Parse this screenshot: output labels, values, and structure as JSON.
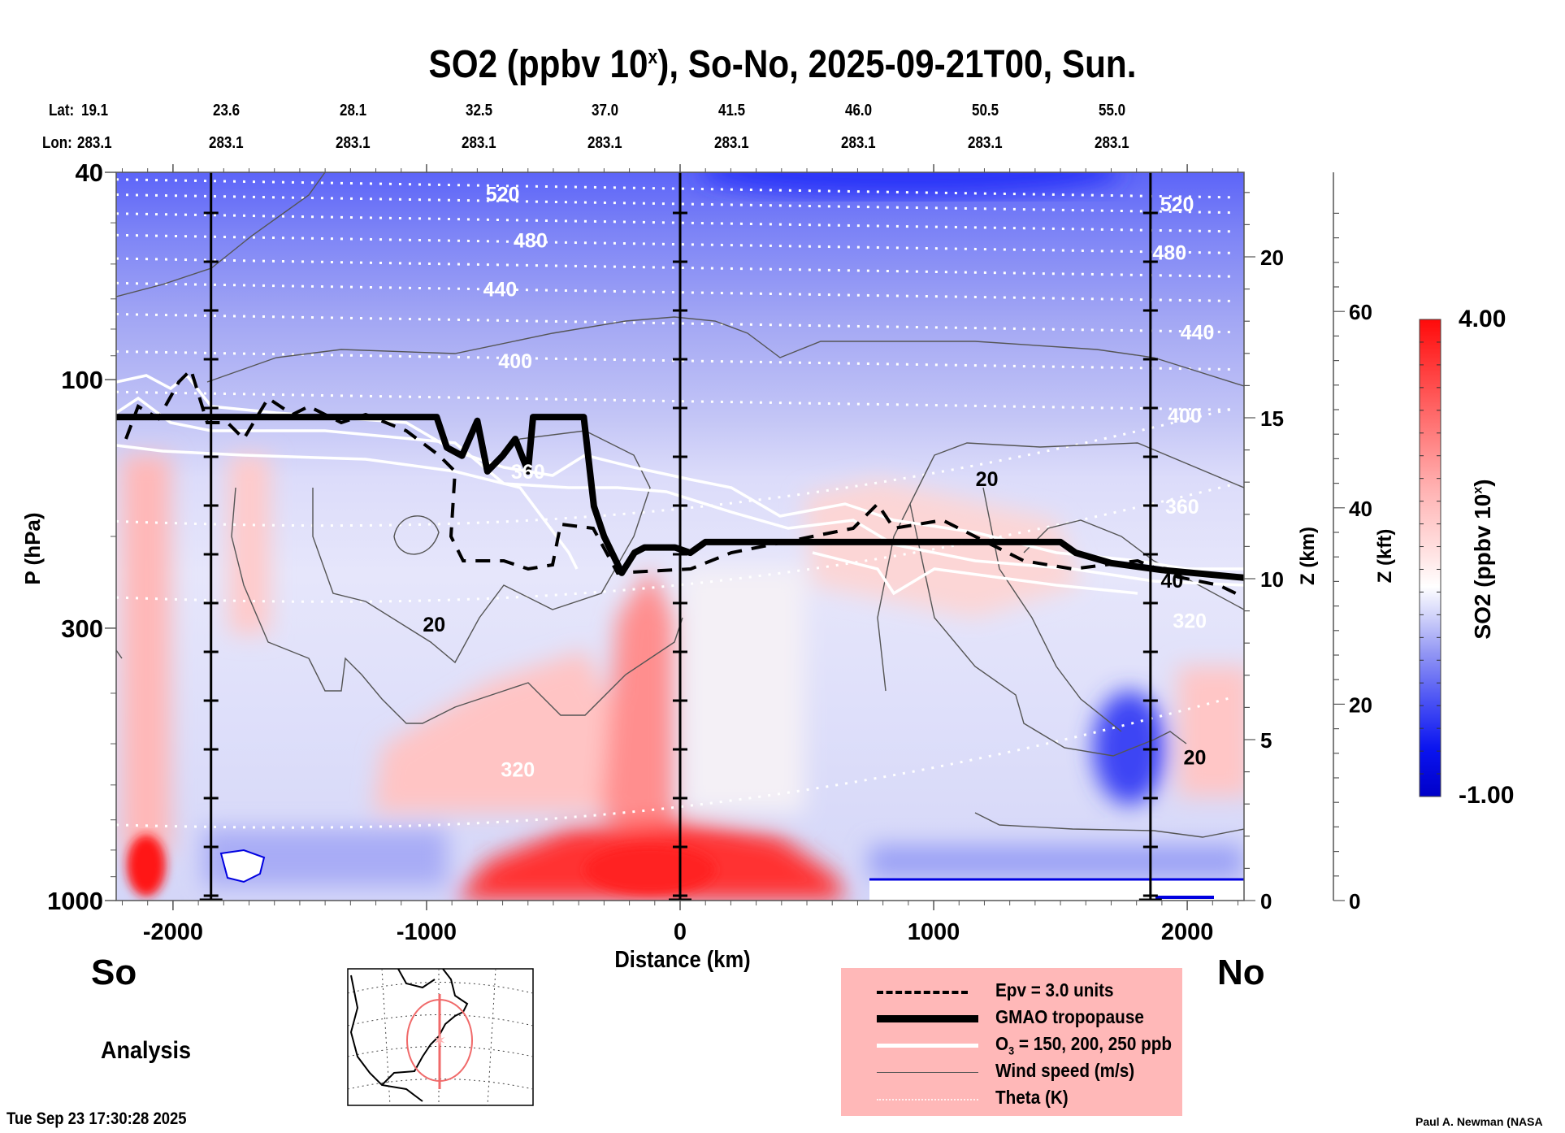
{
  "chart_data": {
    "type": "heatmap",
    "title": "SO2 (ppbv 10",
    "title_superscript": "x",
    "title_suffix": "), So-No, 2025-09-21T00, Sun.",
    "xlabel": "Distance (km)",
    "ylabel": "P (hPa)",
    "xlim": [
      -2224,
      2224
    ],
    "ylim": [
      1000,
      40
    ],
    "x_ticks": [
      -2000,
      -1000,
      0,
      1000,
      2000
    ],
    "y_ticks": [
      40,
      100,
      300,
      1000
    ],
    "y_scale": "log",
    "right_axis_km": {
      "label": "Z (km)",
      "ticks": [
        0,
        5,
        10,
        15,
        20
      ]
    },
    "right_axis_kft": {
      "label": "Z (kft)",
      "ticks": [
        0,
        20,
        40,
        60
      ]
    },
    "lat_label": "Lat:",
    "lon_label": "Lon:",
    "lat_values": [
      "19.1",
      "23.6",
      "28.1",
      "32.5",
      "37.0",
      "41.5",
      "46.0",
      "50.5",
      "55.0"
    ],
    "lon_values": [
      "283.1",
      "283.1",
      "283.1",
      "283.1",
      "283.1",
      "283.1",
      "283.1",
      "283.1",
      "283.1"
    ],
    "vertical_markers_km": [
      -1850,
      0,
      1855
    ],
    "colorbar": {
      "label": "SO2 (ppbv 10",
      "label_sup": "x",
      "label_end": ")",
      "min": -1.0,
      "max": 4.0,
      "min_label": "-1.00",
      "max_label": "4.00",
      "levels": 21
    },
    "theta_labels": [
      {
        "value": "520",
        "x_km": -700,
        "p": 44
      },
      {
        "value": "480",
        "x_km": -590,
        "p": 54
      },
      {
        "value": "440",
        "x_km": -710,
        "p": 67
      },
      {
        "value": "400",
        "x_km": -650,
        "p": 92
      },
      {
        "value": "360",
        "x_km": -600,
        "p": 150
      },
      {
        "value": "320",
        "x_km": -640,
        "p": 560
      },
      {
        "value": "520",
        "x_km": 1960,
        "p": 46
      },
      {
        "value": "480",
        "x_km": 1930,
        "p": 57
      },
      {
        "value": "440",
        "x_km": 2040,
        "p": 81
      },
      {
        "value": "400",
        "x_km": 1990,
        "p": 117
      },
      {
        "value": "360",
        "x_km": 1980,
        "p": 175
      },
      {
        "value": "320",
        "x_km": 2010,
        "p": 290
      }
    ],
    "theta_levels_K": [
      320,
      340,
      360,
      380,
      400,
      420,
      440,
      460,
      480,
      500,
      520,
      540
    ],
    "wind_labels": [
      {
        "value": "20",
        "x_km": -970,
        "p": 295
      },
      {
        "value": "20",
        "x_km": 1210,
        "p": 155
      },
      {
        "value": "20",
        "x_km": 2030,
        "p": 530
      },
      {
        "value": "40",
        "x_km": 1940,
        "p": 243
      }
    ],
    "tropopause_p": [
      [
        -2224,
        118
      ],
      [
        -2000,
        118
      ],
      [
        -1600,
        118
      ],
      [
        -1200,
        118
      ],
      [
        -960,
        118
      ],
      [
        -920,
        135
      ],
      [
        -860,
        140
      ],
      [
        -800,
        120
      ],
      [
        -760,
        150
      ],
      [
        -700,
        140
      ],
      [
        -650,
        130
      ],
      [
        -600,
        150
      ],
      [
        -580,
        118
      ],
      [
        -450,
        118
      ],
      [
        -380,
        118
      ],
      [
        -340,
        175
      ],
      [
        -300,
        200
      ],
      [
        -230,
        235
      ],
      [
        -180,
        215
      ],
      [
        -140,
        210
      ],
      [
        -20,
        210
      ],
      [
        40,
        215
      ],
      [
        100,
        205
      ],
      [
        400,
        205
      ],
      [
        800,
        205
      ],
      [
        1300,
        205
      ],
      [
        1500,
        205
      ],
      [
        1560,
        215
      ],
      [
        1700,
        225
      ],
      [
        1900,
        232
      ],
      [
        2224,
        240
      ]
    ],
    "legend": [
      {
        "label": "Epv = 3.0 units",
        "style": "dashed"
      },
      {
        "label": "GMAO tropopause",
        "style": "thick"
      },
      {
        "label": "O",
        "label_sub": "3",
        "label_end": " = 150, 200, 250 ppb",
        "style": "white"
      },
      {
        "label": "Wind speed (m/s)",
        "style": "thin"
      },
      {
        "label": "Theta (K)",
        "style": "dotted"
      }
    ]
  },
  "labels": {
    "south": "So",
    "north": "No",
    "analysis": "Analysis",
    "timestamp": "Tue Sep 23 17:30:28 2025",
    "credit": "Paul A. Newman (NASA"
  },
  "colors": {
    "red": "#ff0000",
    "blue": "#0000d8",
    "legend_bg": "#ffb8b8",
    "map_track": "#f06a6a"
  }
}
